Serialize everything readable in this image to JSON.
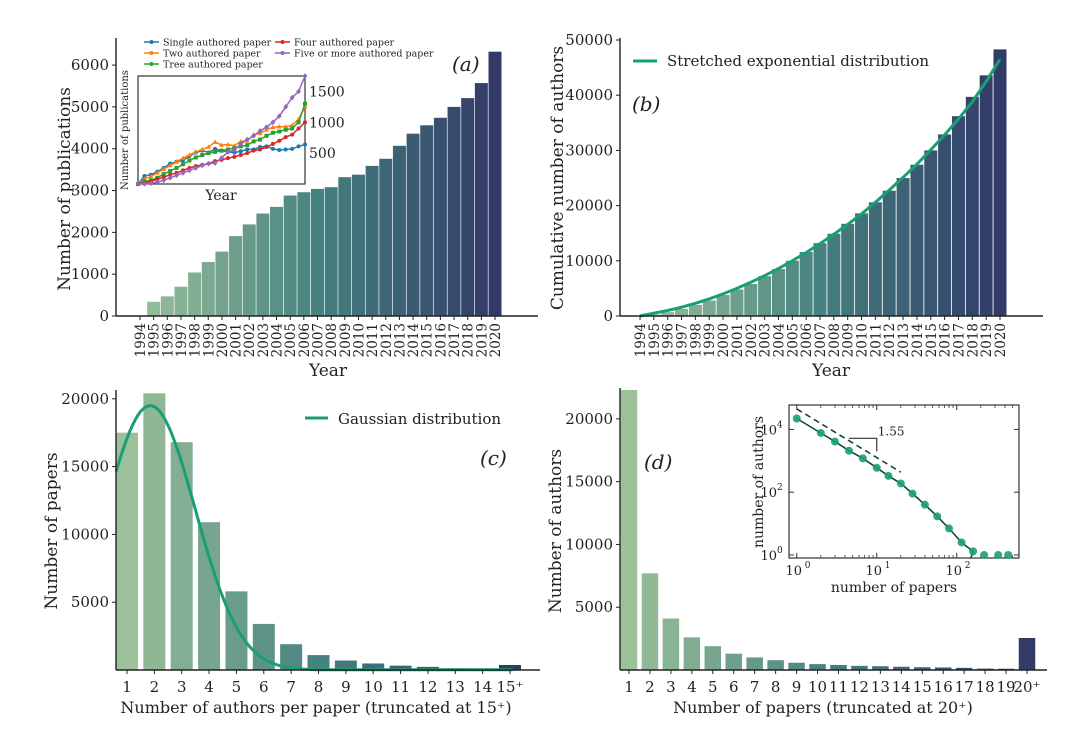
{
  "chart_data": [
    {
      "id": "a",
      "panel_label": "(a)",
      "type": "bar",
      "title": "",
      "xlabel": "Year",
      "ylabel": "Number of publications",
      "ylim": [
        0,
        6600
      ],
      "yticks": [
        0,
        1000,
        2000,
        3000,
        4000,
        5000,
        6000
      ],
      "categories": [
        "1994",
        "1995",
        "1996",
        "1997",
        "1998",
        "1999",
        "2000",
        "2001",
        "2002",
        "2003",
        "2004",
        "2005",
        "2006",
        "2007",
        "2008",
        "2009",
        "2010",
        "2011",
        "2012",
        "2013",
        "2014",
        "2015",
        "2016",
        "2017",
        "2018",
        "2019",
        "2020"
      ],
      "values": [
        0,
        340,
        470,
        700,
        1040,
        1290,
        1540,
        1910,
        2190,
        2450,
        2610,
        2880,
        2960,
        3040,
        3080,
        3320,
        3380,
        3590,
        3760,
        4070,
        4360,
        4560,
        4740,
        5000,
        5210,
        5570,
        6320
      ],
      "palette": [
        "#9bc09a",
        "#323a68"
      ],
      "grid": false,
      "inset": {
        "type": "line",
        "xlabel": "Year",
        "ylabel": "Number of publications",
        "ylim": [
          0,
          1750
        ],
        "yticks": [
          500,
          1000,
          1500
        ],
        "ytick_side": "right",
        "legend_position": "top",
        "series": [
          {
            "name": "Single authored paper",
            "color": "#1f77b4",
            "marker": "circle",
            "values": [
              0,
              130,
              150,
              200,
              260,
              330,
              360,
              380,
              450,
              510,
              540,
              510,
              570,
              540,
              520,
              510,
              530,
              560,
              560,
              600,
              610,
              570,
              550,
              560,
              570,
              610,
              640
            ]
          },
          {
            "name": "Two authored paper",
            "color": "#ff7f0e",
            "marker": "triangle",
            "values": [
              0,
              80,
              120,
              180,
              240,
              300,
              360,
              420,
              470,
              520,
              560,
              600,
              680,
              630,
              640,
              620,
              690,
              700,
              800,
              820,
              880,
              920,
              930,
              930,
              950,
              1050,
              1250
            ]
          },
          {
            "name": "Tree authored paper",
            "color": "#2ca02c",
            "marker": "square",
            "values": [
              0,
              40,
              60,
              100,
              160,
              210,
              260,
              320,
              380,
              430,
              470,
              500,
              520,
              540,
              560,
              580,
              610,
              630,
              690,
              720,
              780,
              830,
              850,
              880,
              900,
              1000,
              1300
            ]
          },
          {
            "name": "Four authored paper",
            "color": "#d62728",
            "marker": "circle",
            "values": [
              0,
              20,
              40,
              80,
              110,
              150,
              180,
              220,
              260,
              290,
              310,
              330,
              370,
              390,
              420,
              440,
              470,
              500,
              540,
              560,
              600,
              650,
              700,
              760,
              800,
              900,
              1000
            ]
          },
          {
            "name": "Five or more authored paper",
            "color": "#9467bd",
            "marker": "diamond",
            "values": [
              0,
              0,
              10,
              30,
              60,
              100,
              140,
              180,
              220,
              260,
              300,
              330,
              340,
              420,
              520,
              550,
              650,
              720,
              780,
              860,
              920,
              1000,
              1100,
              1250,
              1400,
              1500,
              1750
            ]
          }
        ]
      }
    },
    {
      "id": "b",
      "panel_label": "(b)",
      "type": "bar",
      "title": "",
      "xlabel": "Year",
      "ylabel": "Cumulative number of authors",
      "ylim": [
        0,
        50000
      ],
      "yticks": [
        0,
        10000,
        20000,
        30000,
        40000,
        50000
      ],
      "categories": [
        "1994",
        "1995",
        "1996",
        "1997",
        "1998",
        "1999",
        "2000",
        "2001",
        "2002",
        "2003",
        "2004",
        "2005",
        "2006",
        "2007",
        "2008",
        "2009",
        "2010",
        "2011",
        "2012",
        "2013",
        "2014",
        "2015",
        "2016",
        "2017",
        "2018",
        "2019",
        "2020"
      ],
      "values": [
        0,
        300,
        700,
        1300,
        2000,
        2800,
        3800,
        4800,
        5800,
        7200,
        8500,
        10000,
        11600,
        13200,
        14900,
        16700,
        18600,
        20600,
        22700,
        25000,
        27400,
        30000,
        32900,
        36200,
        39700,
        43600,
        48300
      ],
      "palette": [
        "#9bc09a",
        "#323a68"
      ],
      "grid": false,
      "fit": {
        "name": "Stretched exponential distribution",
        "color": "#1a9e74",
        "values": [
          0,
          500,
          1000,
          1600,
          2300,
          3100,
          4000,
          5000,
          6100,
          7300,
          8600,
          10000,
          11500,
          13100,
          14800,
          16600,
          18500,
          20600,
          22800,
          25100,
          27500,
          30100,
          32800,
          35700,
          38800,
          42500,
          46500
        ]
      },
      "legend_position": "top-left"
    },
    {
      "id": "c",
      "panel_label": "(c)",
      "type": "bar",
      "title": "",
      "xlabel": "Number of authors per paper (truncated at 15⁺)",
      "ylabel": "Number of papers",
      "ylim": [
        0,
        20500
      ],
      "yticks": [
        5000,
        10000,
        15000,
        20000
      ],
      "categories": [
        "1",
        "2",
        "3",
        "4",
        "5",
        "6",
        "7",
        "8",
        "9",
        "10",
        "11",
        "12",
        "13",
        "14",
        "15⁺"
      ],
      "values": [
        17500,
        20400,
        16800,
        10900,
        5800,
        3400,
        1900,
        1100,
        700,
        480,
        320,
        230,
        120,
        80,
        370
      ],
      "palette": [
        "#9bc09a",
        "#323a68"
      ],
      "grid": false,
      "fit": {
        "name": "Gaussian distribution",
        "color": "#1a9e74",
        "mean": 1.85,
        "sigma": 1.65,
        "peak": 19500
      },
      "legend_position": "top-right"
    },
    {
      "id": "d",
      "panel_label": "(d)",
      "type": "bar",
      "title": "",
      "xlabel": "Number of papers (truncated at 20⁺)",
      "ylabel": "Number of authors",
      "ylim": [
        0,
        22300
      ],
      "yticks": [
        5000,
        10000,
        15000,
        20000
      ],
      "categories": [
        "1",
        "2",
        "3",
        "4",
        "5",
        "6",
        "7",
        "8",
        "9",
        "10",
        "11",
        "12",
        "13",
        "14",
        "15",
        "16",
        "17",
        "18",
        "19",
        "20⁺"
      ],
      "values": [
        22300,
        7700,
        4100,
        2600,
        1900,
        1300,
        1000,
        780,
        580,
        470,
        400,
        330,
        300,
        260,
        220,
        200,
        170,
        110,
        100,
        2550
      ],
      "palette": [
        "#9bc09a",
        "#323a68"
      ],
      "grid": false,
      "inset": {
        "type": "scatter",
        "xscale": "log",
        "yscale": "log",
        "xlabel": "number of papers",
        "ylabel": "number of authors",
        "xlim": [
          0.8,
          600
        ],
        "ylim": [
          0.8,
          60000
        ],
        "xticks": [
          {
            "v": 1,
            "label": "10",
            "exp": "0"
          },
          {
            "v": 10,
            "label": "10",
            "exp": "1"
          },
          {
            "v": 100,
            "label": "10",
            "exp": "2"
          }
        ],
        "yticks": [
          {
            "v": 1,
            "label": "10",
            "exp": "0"
          },
          {
            "v": 100,
            "label": "10",
            "exp": "2"
          },
          {
            "v": 10000,
            "label": "10",
            "exp": "4"
          }
        ],
        "points_x": [
          1,
          2,
          3,
          4.5,
          6.7,
          10,
          14,
          20,
          28,
          40,
          57,
          80,
          115,
          160,
          220,
          330,
          440
        ],
        "points_y": [
          22300,
          7700,
          4100,
          2100,
          1200,
          600,
          330,
          190,
          90,
          40,
          17,
          7,
          2.5,
          1.3,
          1,
          1,
          1
        ],
        "point_color": "#1a9e74",
        "fit_color": "#0b4d2b",
        "slope_label": "1.55",
        "slope": -1.55
      }
    }
  ]
}
